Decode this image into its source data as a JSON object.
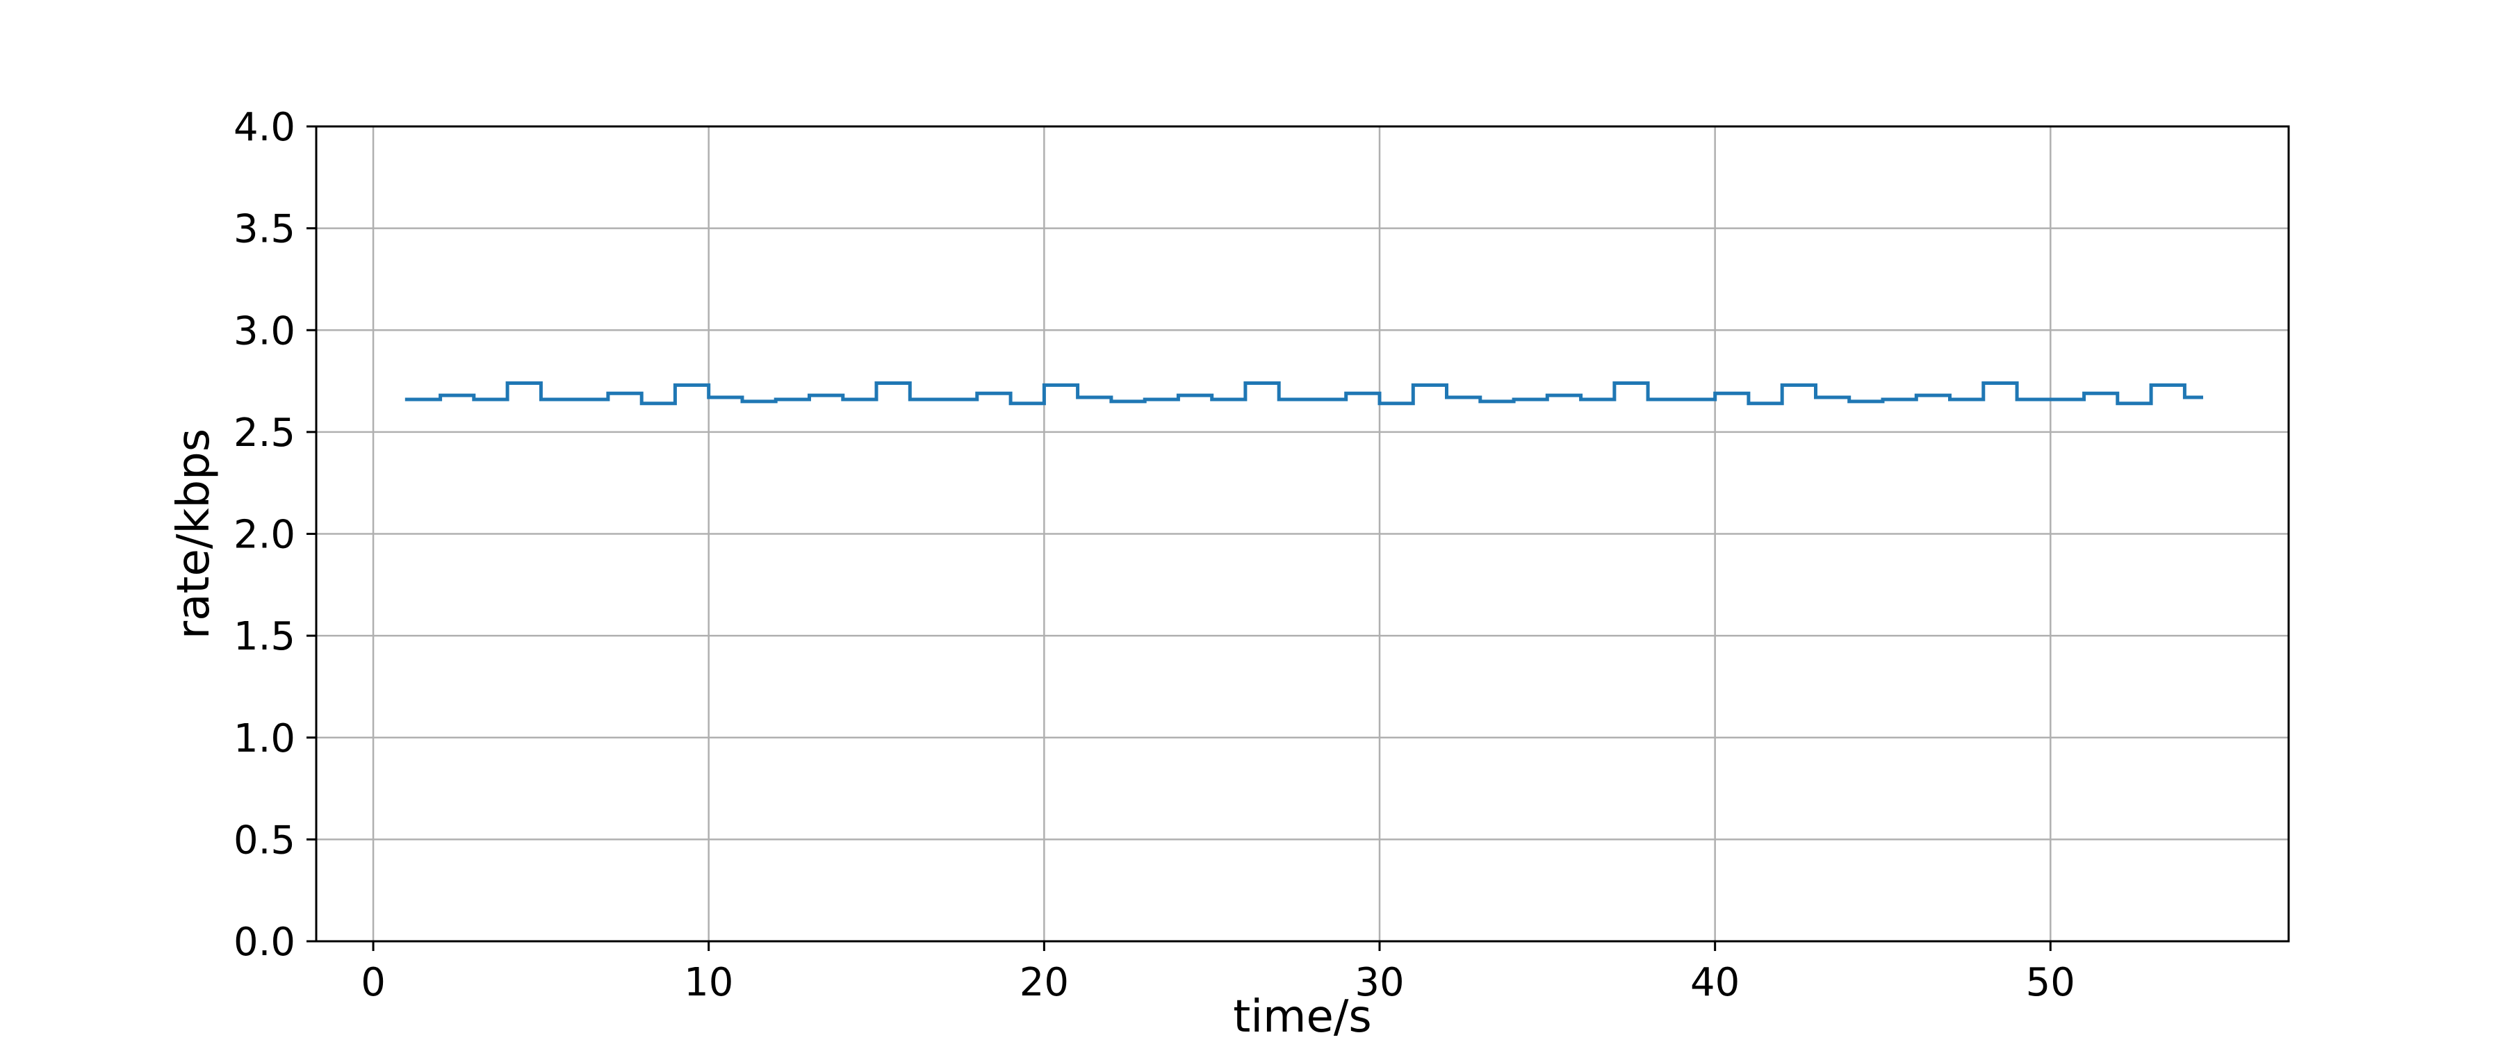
{
  "chart_data": {
    "type": "line",
    "step": "post",
    "title": "",
    "xlabel": "time/s",
    "ylabel": "rate/kbps",
    "xlim": [
      -1.7,
      57.1
    ],
    "ylim": [
      0,
      4.0
    ],
    "xticks": [
      0,
      10,
      20,
      30,
      40,
      50
    ],
    "xtick_labels": [
      "0",
      "10",
      "20",
      "30",
      "40",
      "50"
    ],
    "yticks": [
      0.0,
      0.5,
      1.0,
      1.5,
      2.0,
      2.5,
      3.0,
      3.5,
      4.0
    ],
    "ytick_labels": [
      "0.0",
      "0.5",
      "1.0",
      "1.5",
      "2.0",
      "2.5",
      "3.0",
      "3.5",
      "4.0"
    ],
    "grid": true,
    "legend": null,
    "series": [
      {
        "color": "#1f77b4",
        "x": [
          1,
          2,
          3,
          4,
          5,
          6,
          7,
          8,
          9,
          10,
          11,
          12,
          13,
          14,
          15,
          16,
          17,
          18,
          19,
          20,
          21,
          22,
          23,
          24,
          25,
          26,
          27,
          28,
          29,
          30,
          31,
          32,
          33,
          34,
          35,
          36,
          37,
          38,
          39,
          40,
          41,
          42,
          43,
          44,
          45,
          46,
          47,
          48,
          49,
          50,
          51,
          52,
          53,
          54,
          54.5
        ],
        "y": [
          2.66,
          2.68,
          2.66,
          2.74,
          2.66,
          2.66,
          2.69,
          2.64,
          2.73,
          2.67,
          2.65,
          2.66,
          2.68,
          2.66,
          2.74,
          2.66,
          2.66,
          2.69,
          2.64,
          2.73,
          2.67,
          2.65,
          2.66,
          2.68,
          2.66,
          2.74,
          2.66,
          2.66,
          2.69,
          2.64,
          2.73,
          2.67,
          2.65,
          2.66,
          2.68,
          2.66,
          2.74,
          2.66,
          2.66,
          2.69,
          2.64,
          2.73,
          2.67,
          2.65,
          2.66,
          2.68,
          2.66,
          2.74,
          2.66,
          2.66,
          2.69,
          2.64,
          2.73,
          2.67,
          2.67
        ]
      }
    ]
  }
}
